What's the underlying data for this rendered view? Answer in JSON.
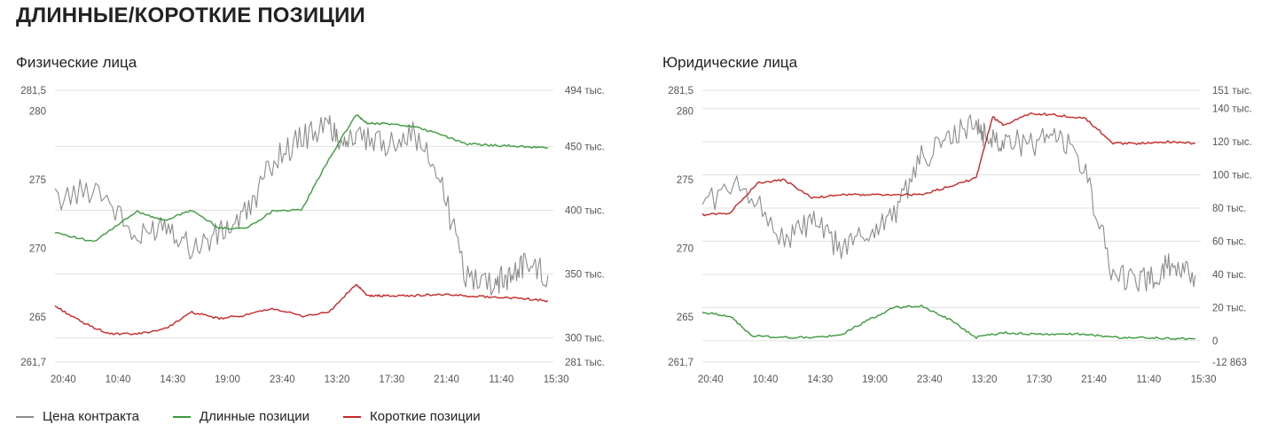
{
  "title": "ДЛИННЫЕ/КОРОТКИЕ ПОЗИЦИИ",
  "legend": [
    {
      "label": "Цена контракта",
      "color": "#8c8c8c"
    },
    {
      "label": "Длинные позиции",
      "color": "#3d9a3d"
    },
    {
      "label": "Короткие позиции",
      "color": "#c62828"
    }
  ],
  "chart_data": [
    {
      "type": "line",
      "title": "Физические лица",
      "x_ticks": [
        "20:40",
        "10:40",
        "14:30",
        "19:00",
        "23:40",
        "13:20",
        "17:30",
        "21:40",
        "11:40",
        "15:30"
      ],
      "left_axis": {
        "ylim": [
          261.7,
          281.5
        ],
        "ticks": [
          "281,5",
          "280",
          "275",
          "270",
          "265",
          "261,7"
        ],
        "tick_values": [
          281.5,
          280,
          275,
          270,
          265,
          261.7
        ]
      },
      "right_axis": {
        "ylim": [
          281000,
          494000
        ],
        "ticks": [
          "494 тыс.",
          "450 тыс.",
          "400 тыс.",
          "350 тыс.",
          "300 тыс.",
          "281 тыс."
        ],
        "tick_values": [
          494000,
          450000,
          400000,
          350000,
          300000,
          281000
        ]
      },
      "series": [
        {
          "name": "Цена контракта",
          "axis": "left",
          "color": "#8c8c8c",
          "x": [
            0,
            0.8,
            1.5,
            2,
            2.5,
            3,
            3.5,
            4,
            4.5,
            5,
            5.2,
            5.5,
            6,
            6.5,
            7,
            7.5,
            8,
            8.3,
            8.6,
            9
          ],
          "y": [
            273.5,
            274.5,
            270.5,
            272,
            270,
            271,
            272.5,
            276.5,
            278,
            279,
            278,
            278,
            277.5,
            278.5,
            275.5,
            268,
            267.5,
            268,
            269,
            268
          ]
        },
        {
          "name": "Длинные позиции",
          "axis": "right",
          "color": "#3d9a3d",
          "x": [
            0,
            0.7,
            1.5,
            2,
            2.5,
            3,
            3.5,
            4,
            4.5,
            5,
            5.5,
            5.7,
            6,
            6.5,
            7,
            7.5,
            8,
            8.5,
            9
          ],
          "y": [
            383000,
            375000,
            399000,
            392000,
            400000,
            386000,
            386000,
            400000,
            400000,
            440000,
            475000,
            468000,
            468000,
            466000,
            460000,
            452000,
            451000,
            450000,
            449000
          ]
        },
        {
          "name": "Короткие позиции",
          "axis": "right",
          "color": "#c62828",
          "x": [
            0,
            0.5,
            1,
            1.5,
            2,
            2.5,
            3,
            3.5,
            4,
            4.5,
            5,
            5.5,
            5.7,
            6,
            6.5,
            7,
            7.5,
            8,
            8.5,
            9
          ],
          "y": [
            325000,
            312000,
            303000,
            303000,
            307000,
            320000,
            315000,
            318000,
            323000,
            317000,
            320000,
            342000,
            333000,
            333000,
            333000,
            334000,
            333000,
            332000,
            331000,
            329000
          ]
        }
      ]
    },
    {
      "type": "line",
      "title": "Юридические лица",
      "x_ticks": [
        "20:40",
        "10:40",
        "14:30",
        "19:00",
        "23:40",
        "13:20",
        "17:30",
        "21:40",
        "11:40",
        "15:30"
      ],
      "left_axis": {
        "ylim": [
          261.7,
          281.5
        ],
        "ticks": [
          "281,5",
          "280",
          "275",
          "270",
          "265",
          "261,7"
        ],
        "tick_values": [
          281.5,
          280,
          275,
          270,
          265,
          261.7
        ]
      },
      "right_axis": {
        "ylim": [
          -12863,
          151000
        ],
        "ticks": [
          "151 тыс.",
          "140 тыс.",
          "120 тыс.",
          "100 тыс.",
          "80 тыс.",
          "60 тыс.",
          "40 тыс.",
          "20 тыс.",
          "0",
          "-12 863"
        ],
        "tick_values": [
          151000,
          140000,
          120000,
          100000,
          80000,
          60000,
          40000,
          20000,
          0,
          -12863
        ]
      },
      "series": [
        {
          "name": "Цена контракта",
          "axis": "left",
          "color": "#8c8c8c",
          "x": [
            0,
            0.8,
            1.5,
            2,
            2.5,
            3,
            3.5,
            4,
            4.5,
            5,
            5.2,
            5.5,
            6,
            6.5,
            7,
            7.5,
            8,
            8.3,
            8.6,
            9
          ],
          "y": [
            273.5,
            274.5,
            270.5,
            272,
            270,
            271,
            272.5,
            276.5,
            278,
            279,
            278,
            278,
            277.5,
            278.5,
            275.5,
            268,
            267.5,
            268,
            269,
            268
          ]
        },
        {
          "name": "Длинные позиции",
          "axis": "right",
          "color": "#3d9a3d",
          "x": [
            0,
            0.5,
            0.9,
            1.5,
            2,
            2.5,
            3,
            3.5,
            4,
            4.5,
            5,
            5.5,
            6,
            6.5,
            7,
            7.5,
            8,
            8.5,
            9
          ],
          "y": [
            17000,
            15000,
            3000,
            2000,
            2000,
            3000,
            12000,
            20000,
            21000,
            13000,
            2000,
            5000,
            4000,
            4000,
            4000,
            2000,
            2000,
            1500,
            1000
          ]
        },
        {
          "name": "Короткие позиции",
          "axis": "right",
          "color": "#c62828",
          "x": [
            0,
            0.5,
            1,
            1.5,
            2,
            2.5,
            3,
            3.5,
            4,
            4.5,
            5,
            5.3,
            5.5,
            6,
            6.5,
            7,
            7.5,
            8,
            8.5,
            9
          ],
          "y": [
            76000,
            77000,
            95000,
            97000,
            86000,
            88000,
            88000,
            88000,
            88000,
            93000,
            98000,
            135000,
            130000,
            137000,
            136000,
            134000,
            119000,
            119000,
            120000,
            119000
          ]
        }
      ]
    }
  ]
}
